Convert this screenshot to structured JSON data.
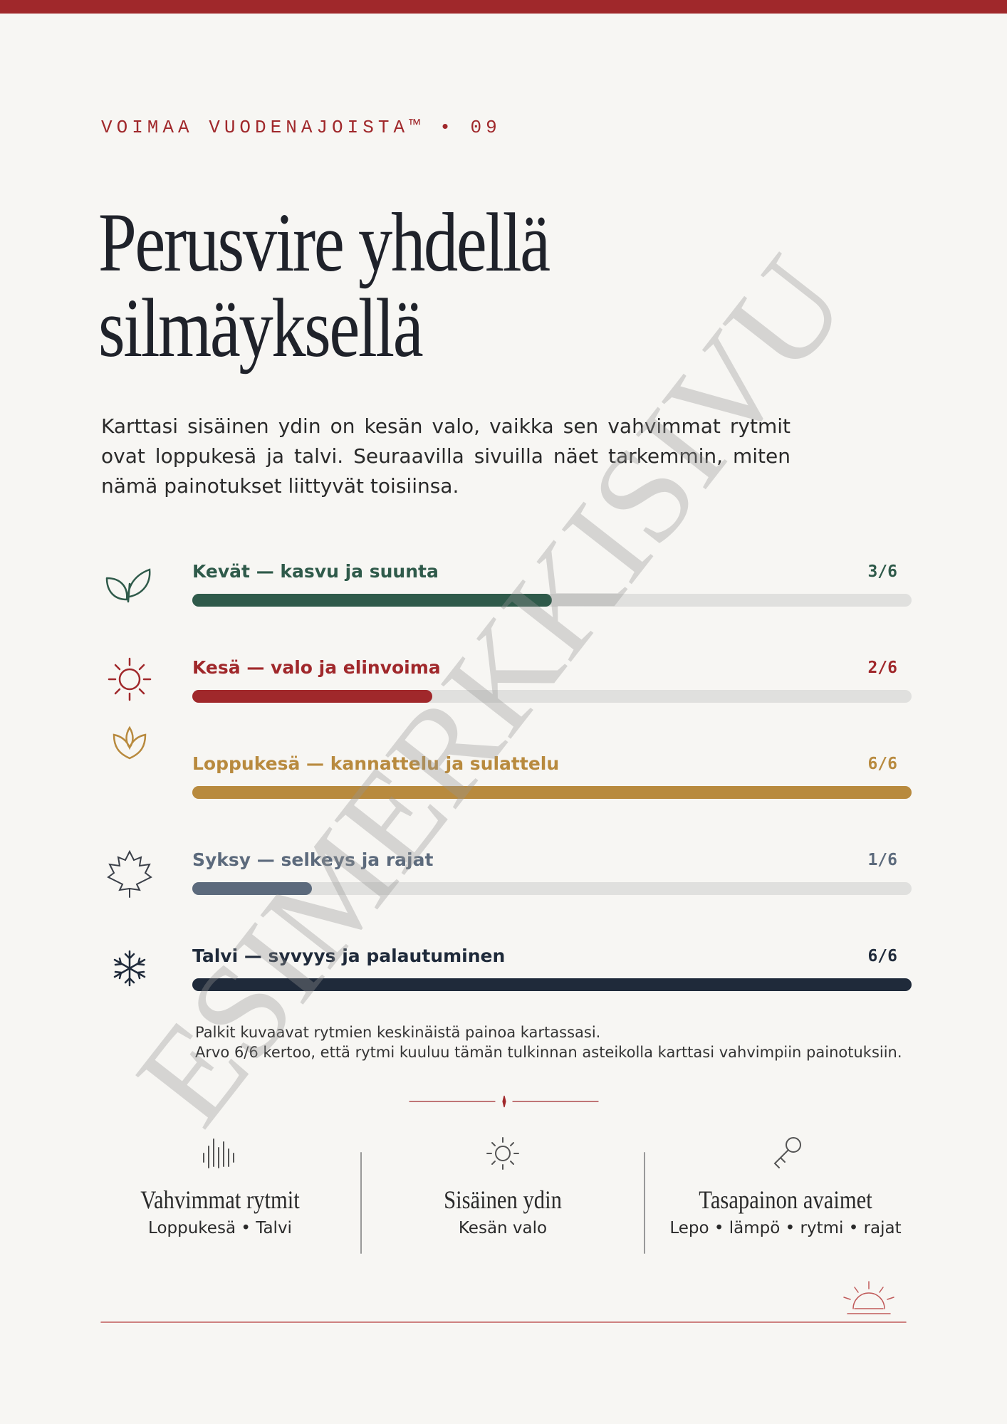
{
  "header": {
    "eyebrow": "VOIMAA VUODENAJOISTA™ • 09",
    "title_lines": [
      "Perusvire yhdellä",
      "silmäyksellä"
    ]
  },
  "intro": "Karttasi sisäinen ydin on kesän valo, vaikka sen vahvimmat rytmit ovat loppukesä ja talvi. Seuraavilla sivuilla näet tarkemmin, miten nämä painotukset liittyvät toisiinsa.",
  "rhythms": [
    {
      "name": "Kevät — kasvu ja suunta",
      "value": 3,
      "max": 6,
      "label": "3/6",
      "color": "#2f5a4a"
    },
    {
      "name": "Kesä — valo ja elinvoima",
      "value": 2,
      "max": 6,
      "label": "2/6",
      "color": "#a0282b"
    },
    {
      "name": "Loppukesä — kannattelu ja sulattelu",
      "value": 6,
      "max": 6,
      "label": "6/6",
      "color": "#b88a3e"
    },
    {
      "name": "Syksy — selkeys ja rajat",
      "value": 1,
      "max": 6,
      "label": "1/6",
      "color": "#5c6a7c"
    },
    {
      "name": "Talvi — syvyys ja palautuminen",
      "value": 6,
      "max": 6,
      "label": "6/6",
      "color": "#1f2a3a"
    }
  ],
  "footnote": [
    "Palkit kuvaavat rytmien keskinäistä painoa kartassasi.",
    "Arvo 6/6 kertoo, että rytmi kuuluu tämän tulkinnan asteikolla karttasi vahvimpiin painotuksiin."
  ],
  "summary": [
    {
      "title": "Vahvimmat rytmit",
      "text": "Loppukesä • Talvi"
    },
    {
      "title": "Sisäinen ydin",
      "text": "Kesän valo"
    },
    {
      "title": "Tasapainon avaimet",
      "text": "Lepo • lämpö • rytmi • rajat"
    }
  ],
  "watermark": "ESIMERKKISIVU"
}
